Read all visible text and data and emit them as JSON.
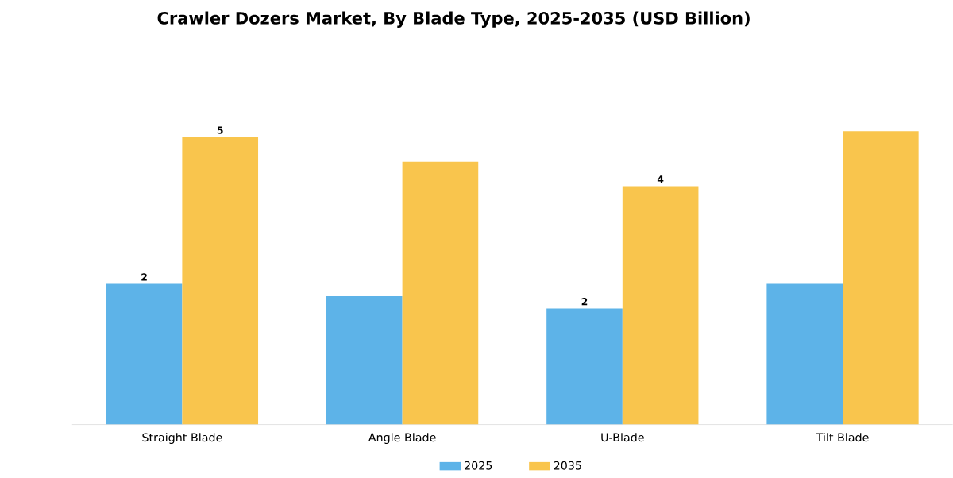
{
  "chart_data": {
    "type": "bar",
    "title": "Crawler Dozers Market, By Blade Type, 2025-2035 (USD Billion)",
    "categories": [
      "Straight Blade",
      "Angle Blade",
      "U-Blade",
      "Tilt Blade"
    ],
    "legend": "bottom",
    "series": [
      {
        "name": "2025",
        "color": "#5db3e8",
        "values": [
          2.3,
          2.1,
          1.9,
          2.3
        ],
        "value_labels": [
          "2",
          null,
          "2",
          null
        ]
      },
      {
        "name": "2035",
        "color": "#f9c54d",
        "values": [
          4.7,
          4.3,
          3.9,
          4.8
        ],
        "value_labels": [
          "5",
          null,
          "4",
          null
        ]
      }
    ]
  }
}
